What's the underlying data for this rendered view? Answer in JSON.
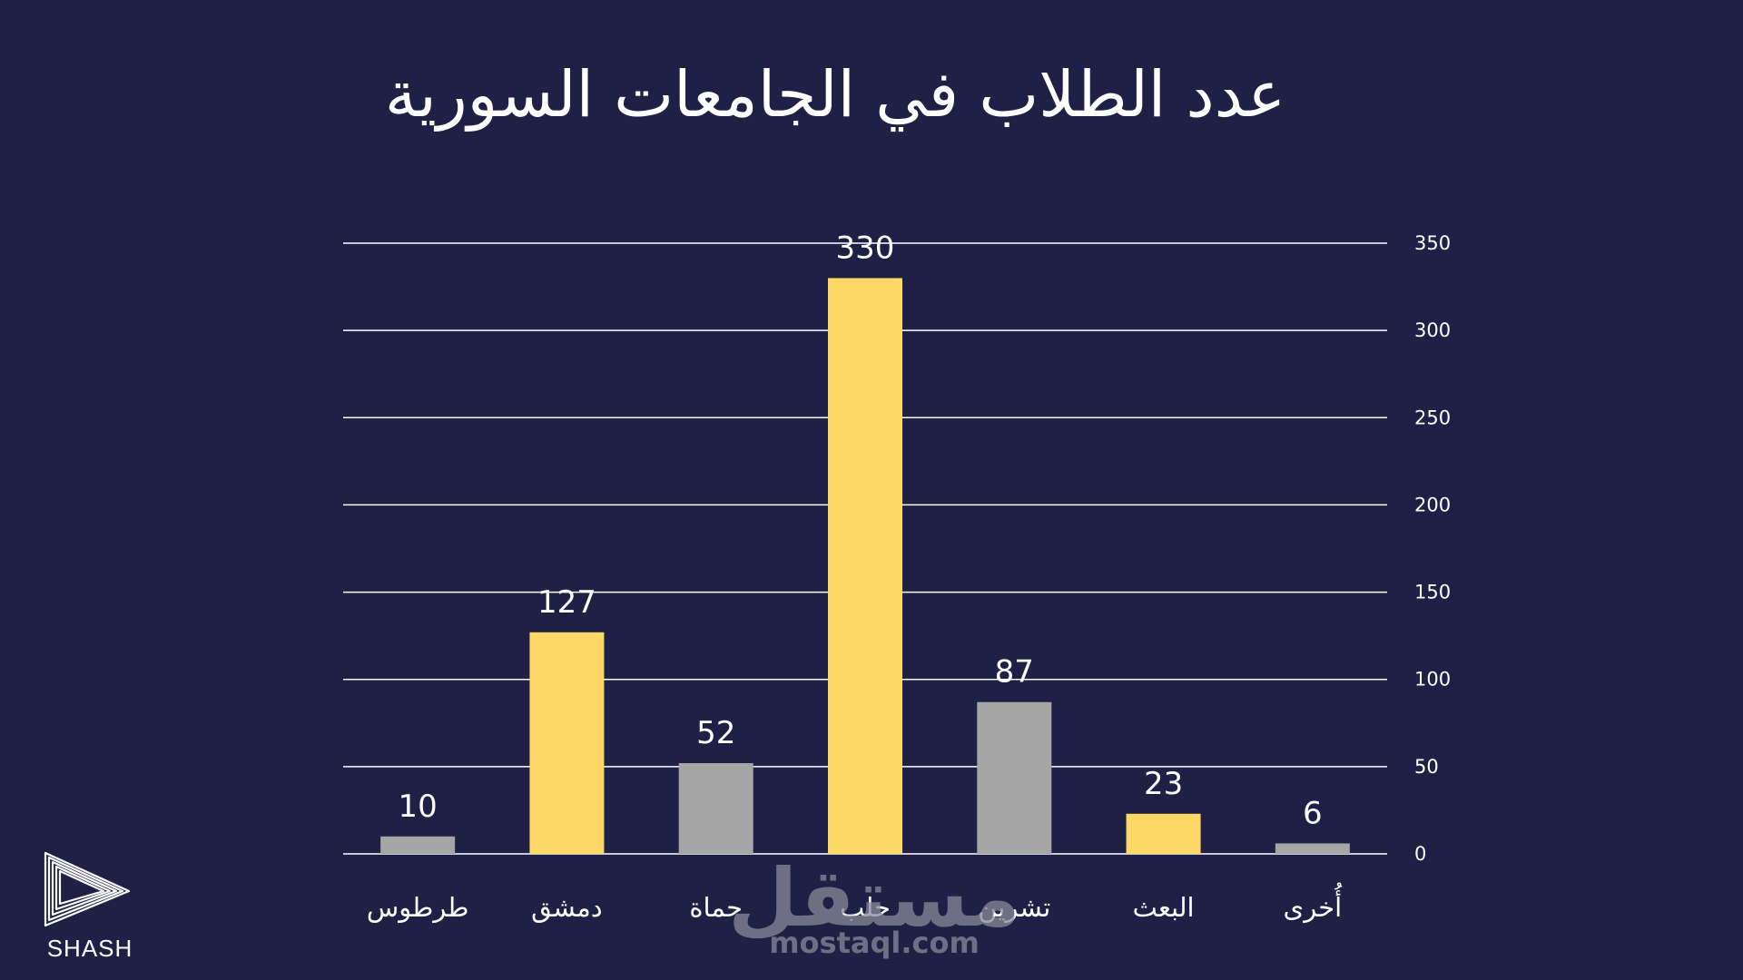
{
  "colors": {
    "background": "#1f2045",
    "highlight": "#fdd866",
    "neutral": "#a6a6a6",
    "gridline": "#ffffff",
    "text": "#ffffff"
  },
  "chart_data": {
    "type": "bar",
    "title": "عدد الطلاب في الجامعات السورية",
    "xlabel": "",
    "ylabel": "",
    "ylim": [
      0,
      350
    ],
    "y_ticks": [
      0,
      50,
      100,
      150,
      200,
      250,
      300,
      350
    ],
    "y_axis_side": "right",
    "grid": true,
    "legend": "none",
    "categories": [
      "طرطوس",
      "دمشق",
      "حماة",
      "حلب",
      "تشرين",
      "البعث",
      "أُخرى"
    ],
    "values": [
      10,
      127,
      52,
      330,
      87,
      23,
      6
    ],
    "data_labels": [
      "10",
      "127",
      "52",
      "330",
      "87",
      "23",
      "6"
    ],
    "bar_colors": [
      "#a6a6a6",
      "#fdd866",
      "#a6a6a6",
      "#fdd866",
      "#a6a6a6",
      "#fdd866",
      "#a6a6a6"
    ]
  },
  "brand": {
    "logo_icon": "play-triangle-icon",
    "name": "SHASH"
  },
  "watermark": {
    "arabic": "مستقل",
    "latin": "mostaql.com"
  }
}
